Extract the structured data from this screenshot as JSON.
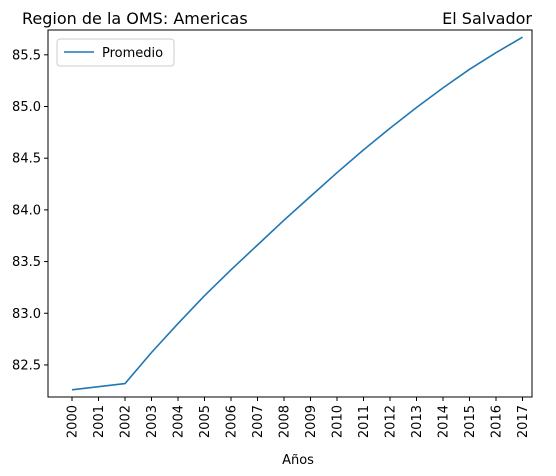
{
  "chart_data": {
    "type": "line",
    "title_left": "Region de la OMS: Americas",
    "title_right": "El Salvador",
    "xlabel": "Años",
    "ylabel": "",
    "x": [
      "2000",
      "2001",
      "2002",
      "2003",
      "2004",
      "2005",
      "2006",
      "2007",
      "2008",
      "2009",
      "2010",
      "2011",
      "2012",
      "2013",
      "2014",
      "2015",
      "2016",
      "2017"
    ],
    "series": [
      {
        "name": "Promedio",
        "color": "#1f77b4",
        "values": [
          82.26,
          82.29,
          82.32,
          82.62,
          82.9,
          83.17,
          83.42,
          83.66,
          83.9,
          84.13,
          84.36,
          84.58,
          84.79,
          84.99,
          85.18,
          85.36,
          85.52,
          85.67
        ]
      }
    ],
    "ylim": [
      82.19,
      85.74
    ],
    "yticks": [
      "82.5",
      "83.0",
      "83.5",
      "84.0",
      "84.5",
      "85.0",
      "85.5"
    ],
    "grid": false,
    "legend_position": "top-left"
  }
}
